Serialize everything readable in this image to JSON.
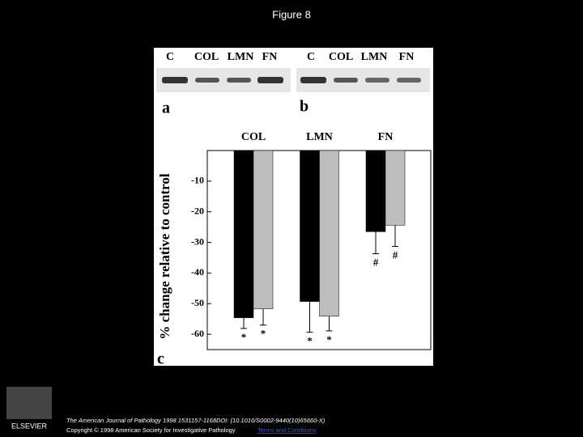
{
  "figure_title": "Figure 8",
  "gel_labels_a": [
    "C",
    "COL",
    "LMN",
    "FN"
  ],
  "gel_labels_b": [
    "C",
    "COL",
    "LMN",
    "FN"
  ],
  "panel_labels": [
    "a",
    "b",
    "c"
  ],
  "chart_data": {
    "type": "bar",
    "y_label": "% change relative to control",
    "categories": [
      "COL",
      "LMN",
      "FN"
    ],
    "series": [
      {
        "color": "#000000",
        "values": [
          -54.6,
          -49.3,
          -26.5
        ],
        "errors": [
          3.5,
          10,
          7.2
        ],
        "markers": [
          "*",
          "*",
          "#"
        ]
      },
      {
        "color": "#bdbdbd",
        "values": [
          -51.7,
          -54.1,
          -24.4
        ],
        "errors": [
          5.3,
          4.8,
          6.9
        ],
        "markers": [
          "*",
          "*",
          "#"
        ]
      }
    ],
    "ylim": [
      -65,
      0
    ],
    "yticks": [
      -10,
      -20,
      -30,
      -40,
      -50,
      -60
    ]
  },
  "footer": {
    "citation": "The American Journal of Pathology 1998 1531157-1168DOI: (10.1016/S0002-9440(10)65660-X)",
    "copyright": "Copyright © 1998 American Society for Investigative Pathology",
    "link": "Terms and Conditions",
    "logo": "ELSEVIER"
  }
}
